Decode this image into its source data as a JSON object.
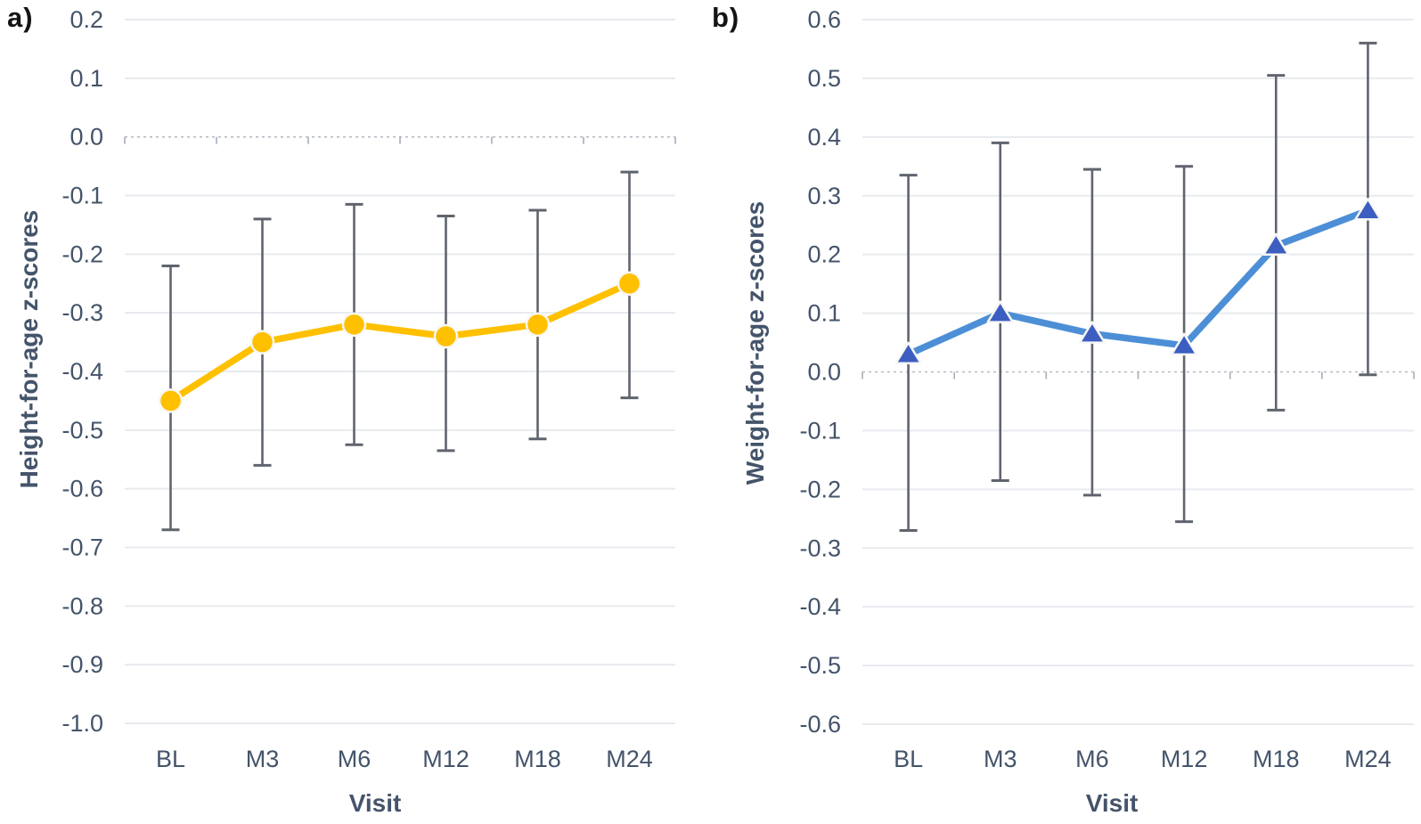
{
  "figure": {
    "background": "#FFFFFF"
  },
  "colors": {
    "gridline": "#E7EAEE",
    "zero_line": "#B6BAC2",
    "axis_tick": "#A7ADB8",
    "error_bar": "#60646E",
    "tick_text": "#44546A",
    "axis_title_text": "#44546A",
    "panel_label_text": "#141414",
    "series_a": "#FFC000",
    "series_b_line": "#4C8FD6",
    "series_b_marker": "#3C5EC0"
  },
  "chart_data": [
    {
      "panel_label": "a)",
      "type": "line",
      "title": "",
      "xlabel": "Visit",
      "ylabel": "Height-for-age z-scores",
      "categories": [
        "BL",
        "M3",
        "M6",
        "M12",
        "M18",
        "M24"
      ],
      "series": [
        {
          "name": "Height-for-age z-scores",
          "values": [
            -0.45,
            -0.35,
            -0.32,
            -0.34,
            -0.32,
            -0.25
          ],
          "error_upper": [
            -0.22,
            -0.14,
            -0.115,
            -0.135,
            -0.125,
            -0.06
          ],
          "error_lower": [
            -0.67,
            -0.56,
            -0.525,
            -0.535,
            -0.515,
            -0.445
          ]
        }
      ],
      "ylim": [
        -1.0,
        0.2
      ],
      "yticks": [
        "0.2",
        "0.1",
        "0.0",
        "-0.1",
        "-0.2",
        "-0.3",
        "-0.4",
        "-0.5",
        "-0.6",
        "-0.7",
        "-0.8",
        "-0.9",
        "-1.0"
      ],
      "grid": true,
      "legend": "none",
      "marker": "circle",
      "line_color": "#FFC000",
      "marker_color": "#FFC000"
    },
    {
      "panel_label": "b)",
      "type": "line",
      "title": "",
      "xlabel": "Visit",
      "ylabel": "Weight-for-age z-scores",
      "categories": [
        "BL",
        "M3",
        "M6",
        "M12",
        "M18",
        "M24"
      ],
      "series": [
        {
          "name": "Weight-for-age z-scores",
          "values": [
            0.03,
            0.1,
            0.065,
            0.045,
            0.215,
            0.275
          ],
          "error_upper": [
            0.335,
            0.39,
            0.345,
            0.35,
            0.505,
            0.56
          ],
          "error_lower": [
            -0.27,
            -0.185,
            -0.21,
            -0.255,
            -0.065,
            -0.005
          ]
        }
      ],
      "ylim": [
        -0.6,
        0.6
      ],
      "yticks": [
        "0.6",
        "0.5",
        "0.4",
        "0.3",
        "0.2",
        "0.1",
        "0.0",
        "-0.1",
        "-0.2",
        "-0.3",
        "-0.4",
        "-0.5",
        "-0.6"
      ],
      "grid": true,
      "legend": "none",
      "marker": "triangle",
      "line_color": "#4C8FD6",
      "marker_color": "#3C5EC0"
    }
  ]
}
